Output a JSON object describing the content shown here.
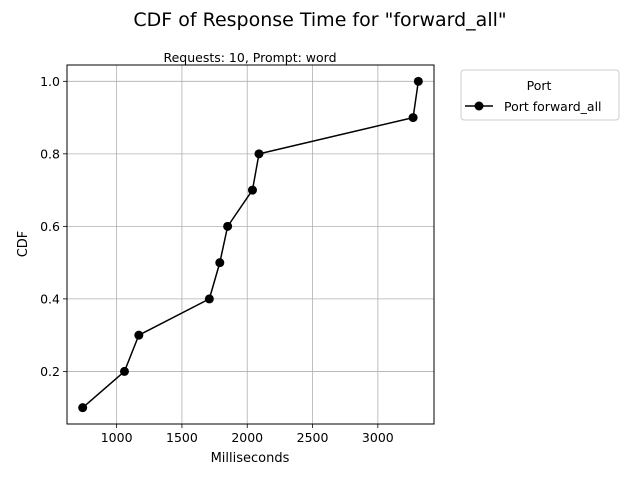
{
  "chart_data": {
    "type": "line",
    "title": "CDF of Response Time for \"forward_all\"",
    "subtitle": "Requests: 10, Prompt: word",
    "xlabel": "Milliseconds",
    "ylabel": "CDF",
    "xlim": [
      620,
      3430
    ],
    "ylim": [
      0.055,
      1.045
    ],
    "xticks": [
      1000,
      1500,
      2000,
      2500,
      3000
    ],
    "yticks": [
      0.2,
      0.4,
      0.6,
      0.8,
      1.0
    ],
    "xtick_labels": [
      "1000",
      "1500",
      "2000",
      "2500",
      "3000"
    ],
    "ytick_labels": [
      "0.2",
      "0.4",
      "0.6",
      "0.8",
      "1.0"
    ],
    "grid": true,
    "legend": {
      "title": "Port",
      "placement": "outside-right"
    },
    "series": [
      {
        "name": "Port forward_all",
        "color": "#000000",
        "marker": "circle",
        "x": [
          740,
          1060,
          1170,
          1710,
          1790,
          1850,
          2040,
          2090,
          3270,
          3310
        ],
        "y": [
          0.1,
          0.2,
          0.3,
          0.4,
          0.5,
          0.6,
          0.7,
          0.8,
          0.9,
          1.0
        ]
      }
    ]
  }
}
